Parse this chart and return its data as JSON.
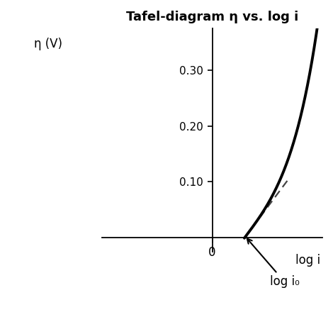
{
  "title": "Tafel-diagram η vs. log i",
  "xlabel": "log i",
  "ylabel": "η (V)",
  "xlim": [
    -2.2,
    2.2
  ],
  "ylim": [
    -0.025,
    0.375
  ],
  "yticks": [
    0.1,
    0.2,
    0.3
  ],
  "xtick_zero": "0",
  "bg_color": "#ffffff",
  "curve_color": "#000000",
  "dashed_color": "#444444",
  "annotation_text": "log i₀",
  "log_i0": 0.65,
  "curve_lw": 2.8,
  "dashed_lw": 1.6,
  "title_fontsize": 13,
  "label_fontsize": 12,
  "tick_fontsize": 11,
  "A": 0.075,
  "B": 1.6,
  "tafel_slope": 0.12
}
